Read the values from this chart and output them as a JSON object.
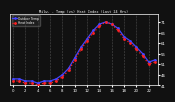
{
  "title": "Milw. - Temp (vs) Heat Index (Last 24 Hrs)",
  "bg_color": "#111111",
  "plot_bg_color": "#111111",
  "grid_color": "#555555",
  "temp_color": "#4444ff",
  "heat_color": "#ff2222",
  "ylim": [
    41,
    75
  ],
  "hours": [
    0,
    1,
    2,
    3,
    4,
    5,
    6,
    7,
    8,
    9,
    10,
    11,
    12,
    13,
    14,
    15,
    16,
    17,
    18,
    19,
    20,
    21,
    22,
    23
  ],
  "temp_values": [
    44,
    44,
    43,
    43,
    42,
    43,
    43,
    44,
    46,
    49,
    54,
    59,
    63,
    67,
    70,
    71,
    70,
    68,
    64,
    62,
    59,
    56,
    52,
    53
  ],
  "heat_values": [
    43,
    43,
    42,
    42,
    41,
    42,
    42,
    43,
    45,
    48,
    53,
    58,
    62,
    66,
    69,
    71,
    70,
    67,
    63,
    61,
    58,
    55,
    51,
    52
  ],
  "yticks": [
    41,
    46,
    51,
    56,
    61,
    66,
    71
  ],
  "ytick_labels": [
    "41",
    "46",
    "51",
    "56",
    "61",
    "66",
    "71"
  ],
  "xtick_step": 2,
  "legend_labels": [
    "Outdoor Temp",
    "Heat Index"
  ],
  "title_color": "#ffffff",
  "tick_color": "#ffffff",
  "legend_text_color": "#ffffff",
  "dpi": 100
}
